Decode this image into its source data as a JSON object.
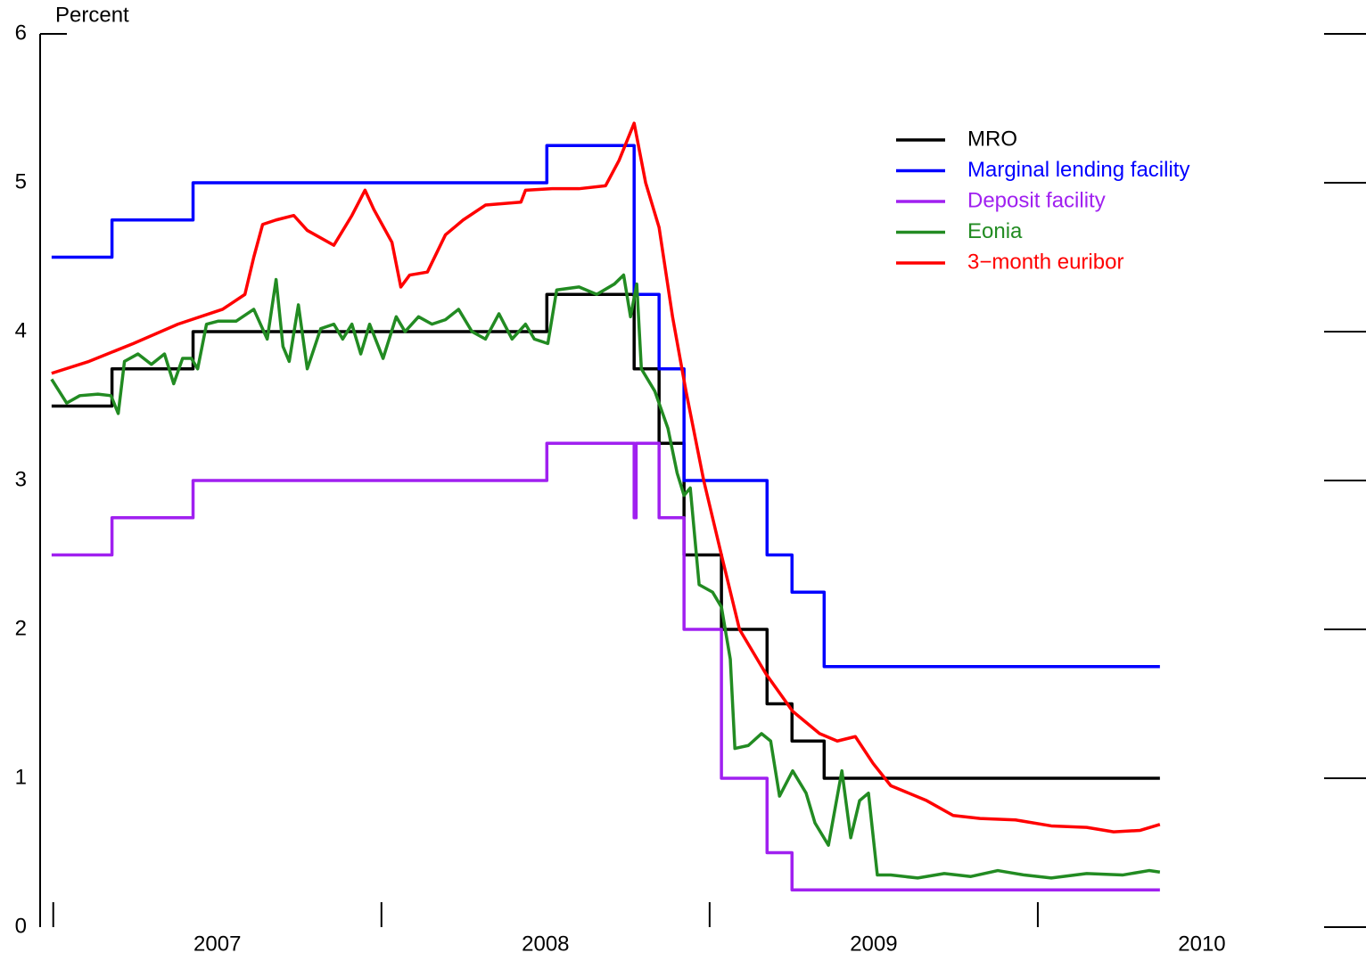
{
  "chart_data": {
    "type": "line",
    "ylabel": "Percent",
    "xlim": [
      2006.96,
      2011.0
    ],
    "ylim": [
      0,
      6
    ],
    "yticks": [
      0,
      1,
      2,
      3,
      4,
      5,
      6
    ],
    "xticks": [
      {
        "value": 2007.5,
        "label": "2007"
      },
      {
        "value": 2008.5,
        "label": "2008"
      },
      {
        "value": 2009.5,
        "label": "2009"
      },
      {
        "value": 2010.5,
        "label": "2010"
      }
    ],
    "xminor_ticks": [
      2007,
      2008,
      2009,
      2010
    ],
    "legend": "upper right",
    "series": [
      {
        "name": "MRO",
        "color": "#000000",
        "step": true,
        "x": [
          2006.995,
          2007.179,
          2007.426,
          2008.504,
          2008.77,
          2008.846,
          2008.922,
          2009.036,
          2009.175,
          2009.251,
          2009.349,
          2010.372
        ],
        "values": [
          3.5,
          3.75,
          4.0,
          4.25,
          3.75,
          3.25,
          2.5,
          2.0,
          1.5,
          1.25,
          1.0,
          1.0
        ]
      },
      {
        "name": "Marginal lending facility",
        "color": "#0000ff",
        "step": true,
        "x": [
          2006.995,
          2007.179,
          2007.426,
          2008.504,
          2008.77,
          2008.846,
          2008.922,
          2009.175,
          2009.251,
          2009.349,
          2010.372
        ],
        "values": [
          4.5,
          4.75,
          5.0,
          5.25,
          4.25,
          3.75,
          3.0,
          2.5,
          2.25,
          1.75,
          1.75
        ]
      },
      {
        "name": "Deposit facility",
        "color": "#a020f0",
        "step": true,
        "x": [
          2006.995,
          2007.179,
          2007.426,
          2008.504,
          2008.77,
          2008.776,
          2008.846,
          2008.922,
          2009.036,
          2009.175,
          2009.251,
          2010.372
        ],
        "values": [
          2.5,
          2.75,
          3.0,
          3.25,
          2.75,
          3.25,
          2.75,
          2.0,
          1.0,
          0.5,
          0.25,
          0.25
        ]
      },
      {
        "name": "Eonia",
        "color": "#228b22",
        "step": false,
        "x": [
          2006.995,
          2007.041,
          2007.081,
          2007.136,
          2007.176,
          2007.198,
          2007.217,
          2007.258,
          2007.299,
          2007.339,
          2007.367,
          2007.394,
          2007.421,
          2007.44,
          2007.467,
          2007.502,
          2007.557,
          2007.611,
          2007.652,
          2007.679,
          2007.7,
          2007.719,
          2007.747,
          2007.774,
          2007.815,
          2007.855,
          2007.882,
          2007.91,
          2007.937,
          2007.964,
          2008.005,
          2008.045,
          2008.072,
          2008.113,
          2008.154,
          2008.195,
          2008.235,
          2008.276,
          2008.317,
          2008.358,
          2008.398,
          2008.439,
          2008.466,
          2008.507,
          2008.534,
          2008.602,
          2008.656,
          2008.71,
          2008.738,
          2008.759,
          2008.778,
          2008.792,
          2008.833,
          2008.873,
          2008.901,
          2008.922,
          2008.941,
          2008.968,
          2009.009,
          2009.036,
          2009.063,
          2009.077,
          2009.118,
          2009.158,
          2009.186,
          2009.213,
          2009.253,
          2009.294,
          2009.321,
          2009.362,
          2009.403,
          2009.43,
          2009.457,
          2009.484,
          2009.511,
          2009.552,
          2009.634,
          2009.715,
          2009.796,
          2009.878,
          2009.959,
          2010.041,
          2010.149,
          2010.258,
          2010.339,
          2010.372
        ],
        "values": [
          3.68,
          3.52,
          3.57,
          3.58,
          3.57,
          3.45,
          3.8,
          3.85,
          3.78,
          3.85,
          3.65,
          3.82,
          3.82,
          3.75,
          4.05,
          4.07,
          4.07,
          4.15,
          3.95,
          4.35,
          3.9,
          3.8,
          4.18,
          3.75,
          4.02,
          4.05,
          3.95,
          4.05,
          3.85,
          4.05,
          3.82,
          4.1,
          4.0,
          4.1,
          4.05,
          4.08,
          4.15,
          4.0,
          3.95,
          4.12,
          3.95,
          4.05,
          3.95,
          3.92,
          4.28,
          4.3,
          4.25,
          4.32,
          4.38,
          4.1,
          4.32,
          3.75,
          3.6,
          3.35,
          3.05,
          2.9,
          2.95,
          2.3,
          2.25,
          2.15,
          1.8,
          1.2,
          1.22,
          1.3,
          1.25,
          0.88,
          1.05,
          0.9,
          0.7,
          0.55,
          1.05,
          0.6,
          0.85,
          0.9,
          0.35,
          0.35,
          0.33,
          0.36,
          0.34,
          0.38,
          0.35,
          0.33,
          0.36,
          0.35,
          0.38,
          0.37
        ]
      },
      {
        "name": "3−month euribor",
        "color": "#ff0000",
        "step": false,
        "x": [
          2006.995,
          2007.109,
          2007.244,
          2007.38,
          2007.516,
          2007.584,
          2007.611,
          2007.638,
          2007.679,
          2007.733,
          2007.774,
          2007.855,
          2007.91,
          2007.95,
          2007.977,
          2008.032,
          2008.059,
          2008.086,
          2008.14,
          2008.195,
          2008.249,
          2008.317,
          2008.425,
          2008.439,
          2008.52,
          2008.602,
          2008.683,
          2008.724,
          2008.77,
          2008.805,
          2008.846,
          2008.887,
          2008.928,
          2008.982,
          2009.036,
          2009.091,
          2009.172,
          2009.253,
          2009.335,
          2009.389,
          2009.444,
          2009.498,
          2009.552,
          2009.661,
          2009.742,
          2009.824,
          2009.932,
          2010.041,
          2010.149,
          2010.231,
          2010.312,
          2010.372
        ],
        "values": [
          3.72,
          3.8,
          3.92,
          4.05,
          4.15,
          4.25,
          4.5,
          4.72,
          4.75,
          4.78,
          4.68,
          4.58,
          4.78,
          4.95,
          4.82,
          4.6,
          4.3,
          4.38,
          4.4,
          4.65,
          4.75,
          4.85,
          4.87,
          4.95,
          4.96,
          4.96,
          4.98,
          5.15,
          5.4,
          5.0,
          4.7,
          4.1,
          3.6,
          3.0,
          2.5,
          2.0,
          1.7,
          1.45,
          1.3,
          1.25,
          1.28,
          1.1,
          0.95,
          0.85,
          0.75,
          0.73,
          0.72,
          0.68,
          0.67,
          0.64,
          0.65,
          0.69
        ]
      }
    ]
  }
}
